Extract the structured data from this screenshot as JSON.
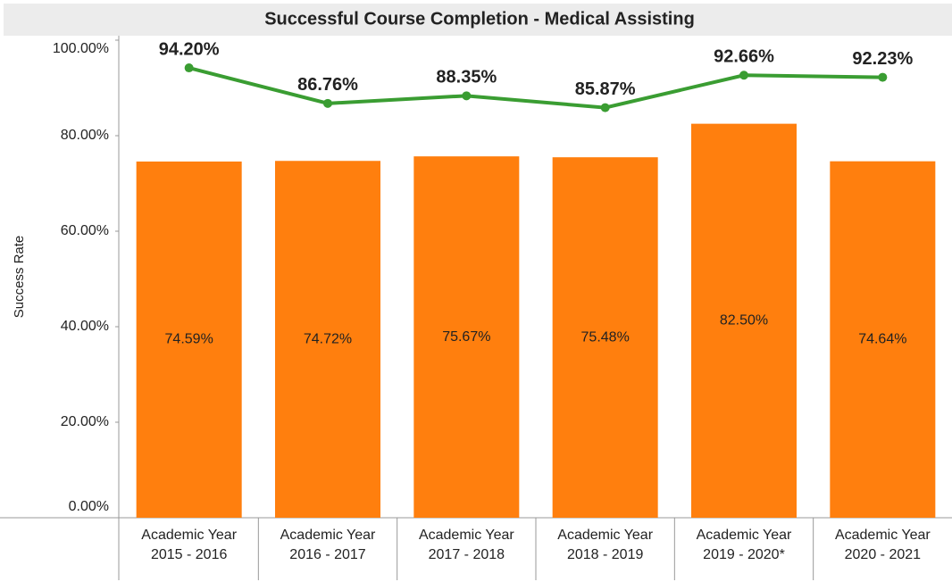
{
  "chart_data": {
    "type": "bar",
    "title": "Successful Course Completion - Medical Assisting",
    "y_label": "Success Rate",
    "categories": [
      [
        "Academic Year",
        "2015 - 2016"
      ],
      [
        "Academic Year",
        "2016 - 2017"
      ],
      [
        "Academic Year",
        "2017 - 2018"
      ],
      [
        "Academic Year",
        "2018 - 2019"
      ],
      [
        "Academic Year",
        "2019 - 2020*"
      ],
      [
        "Academic Year",
        "2020 - 2021"
      ]
    ],
    "series": [
      {
        "type": "bar",
        "color": "#ff7f0e",
        "values": [
          74.59,
          74.72,
          75.67,
          75.48,
          82.5,
          74.64
        ],
        "value_labels": [
          "74.59%",
          "74.72%",
          "75.67%",
          "75.48%",
          "82.50%",
          "74.64%"
        ]
      },
      {
        "type": "line",
        "color": "#3a9d32",
        "values": [
          94.2,
          86.76,
          88.35,
          85.87,
          92.66,
          92.23
        ],
        "value_labels": [
          "94.20%",
          "86.76%",
          "88.35%",
          "85.87%",
          "92.66%",
          "92.23%"
        ]
      }
    ],
    "ylim": [
      0,
      100
    ],
    "yticks": [
      {
        "value": 0,
        "label": "0.00%"
      },
      {
        "value": 20,
        "label": "20.00%"
      },
      {
        "value": 40,
        "label": "40.00%"
      },
      {
        "value": 60,
        "label": "60.00%"
      },
      {
        "value": 80,
        "label": "80.00%"
      },
      {
        "value": 100,
        "label": "100.00%"
      }
    ],
    "grid": false
  }
}
